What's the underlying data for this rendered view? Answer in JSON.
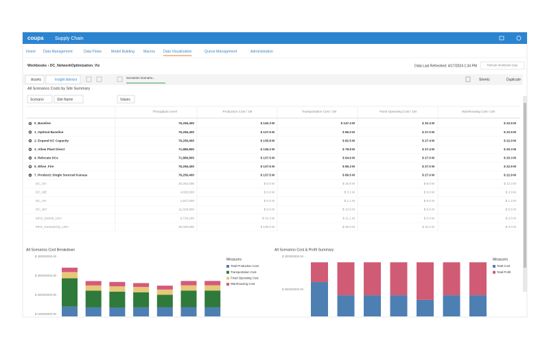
{
  "header": {
    "brand": "coupa",
    "product": "Supply Chain"
  },
  "nav": [
    "Home",
    "Data Management",
    "Data Flows",
    "Model Building",
    "Macros",
    "Data Visualization",
    "Queue Management",
    "Administration"
  ],
  "nav_active": 5,
  "breadcrumb": {
    "root": "Workbooks",
    "current": "DC_NetworkOptimization_Viz"
  },
  "refreshed": "Data Last Refreshed: 4/17/2024 1:34 PM",
  "refresh_button": "Refresh Workbook Data",
  "toolbar": {
    "assets": "Assets",
    "insight": "Insight Advisor",
    "tab": "Scenarios Scenario...",
    "sheets": "Sheets",
    "duplicate": "Duplicate"
  },
  "table": {
    "title": "All Scenarios Costs by Site Summary",
    "filters": [
      "Scenario",
      "Site Name"
    ],
    "values_button": "Values",
    "columns": [
      "Throughput Level",
      "Production Cost / 1M",
      "Transportation Cost / 1M",
      "Fixed Operating Cost / 1M",
      "Warehousing Cost / 1M"
    ],
    "rows": [
      [
        "0_Baseline",
        "76,256,400",
        "$ 140.3 M",
        "$ 147.4 M",
        "$ 32.4 M",
        "$ 22.9 M"
      ],
      [
        "1_Optimal Baseline",
        "76,256,400",
        "$ 137.5 M",
        "$ 86.0 M",
        "$ 27.0 M",
        "$ 22.9 M"
      ],
      [
        "2_Expand KC Capacity",
        "76,256,400",
        "$ 135.8 M",
        "$ 82.5 M",
        "$ 27.4 M",
        "$ 22.9 M"
      ],
      [
        "3_Allow Plant Direct",
        "71,886,800",
        "$ 136.2 M",
        "$ 78.8 M",
        "$ 27.4 M",
        "$ 20.3 M"
      ],
      [
        "4_Relocate DCs",
        "71,886,800",
        "$ 137.5 M",
        "$ 64.6 M",
        "$ 27.0 M",
        "$ 20.3 M"
      ],
      [
        "5_Whse_Fire",
        "76,256,400",
        "$ 137.5 M",
        "$ 86.3 M",
        "$ 27.0 M",
        "$ 22.9 M"
      ],
      [
        "7_Product1 Single Sourced Kansas",
        "76,256,400",
        "$ 137.5 M",
        "$ 86.5 M",
        "$ 27.0 M",
        "$ 22.9 M"
      ]
    ],
    "site_rows": [
      [
        "DC_GA",
        "20,262,000",
        "$ 0.0 M",
        "$ 15.8 M",
        "$ 9.0 M",
        "$ 12.3 M"
      ],
      [
        "DC_ME",
        "4,603,500",
        "$ 0.0 M",
        "$ 3.1 M",
        "$ 9.0 M",
        "$ 2.9 M"
      ],
      [
        "DC_NV",
        "1,647,000",
        "$ 0.0 M",
        "$ 1.1 M",
        "$ 9.0 M",
        "$ 1.2 M"
      ],
      [
        "DC_WY",
        "11,028,800",
        "$ 0.0 M",
        "$ 13.6 M",
        "$ 9.0 M",
        "$ 6.6 M"
      ],
      [
        "MFG_Detroit_USA",
        "9,726,200",
        "$ 32.3 M",
        "$ 11.1 M",
        "$ 0.0 M",
        "$ 0.0 M"
      ],
      [
        "MFG_KansasCity_USA",
        "30,000,000",
        "$ 105.0 M",
        "$ 36.8 M",
        "$ 16.2 M",
        "$ 0.0 M"
      ]
    ]
  },
  "chart_data": [
    {
      "type": "stacked_bar",
      "title": "All Scenarios Cost Breakdown",
      "legend_title": "Measures",
      "ylim": [
        0,
        400000000
      ],
      "yticks": [
        {
          "value": 100000000,
          "label": "$ 100000000.00"
        },
        {
          "value": 200000000,
          "label": "$ 200000000.00"
        },
        {
          "value": 300000000,
          "label": "$ 300000000.00"
        },
        {
          "value": 400000000,
          "label": "$ 400000000.00"
        }
      ],
      "series": [
        {
          "name": "Total Production Cost",
          "color": "#4d7fb3",
          "values": [
            140300000,
            137500000,
            135800000,
            136200000,
            137500000,
            137500000,
            137500000
          ]
        },
        {
          "name": "Transportation Cost",
          "color": "#2f7a3a",
          "values": [
            147400000,
            86000000,
            82500000,
            78800000,
            64600000,
            86300000,
            86500000
          ]
        },
        {
          "name": "Fixed Operating Cost",
          "color": "#e6c878",
          "values": [
            32400000,
            27000000,
            27400000,
            27400000,
            27000000,
            27000000,
            27000000
          ]
        },
        {
          "name": "Warehousing Cost",
          "color": "#d45a7a",
          "values": [
            22900000,
            22900000,
            22900000,
            20300000,
            20300000,
            22900000,
            22900000
          ]
        }
      ]
    },
    {
      "type": "stacked_bar",
      "title": "All Scenarios Cost & Profit Summary",
      "legend_title": "Measures",
      "ylim": [
        0,
        300000000
      ],
      "yticks": [
        {
          "value": 200000000,
          "label": "$ 200000000.00"
        },
        {
          "value": 300000000,
          "label": "$ 300000000.00"
        }
      ],
      "series": [
        {
          "name": "Total Cost",
          "color": "#4d7fb3",
          "values": [
            223000000,
            183000000,
            183000000,
            183000000,
            169000000,
            183000000,
            183000000
          ]
        },
        {
          "name": "Total Profit",
          "color": "#cf5c74",
          "values": [
            60000000,
            100000000,
            100000000,
            100000000,
            114000000,
            100000000,
            100000000
          ]
        }
      ]
    }
  ]
}
